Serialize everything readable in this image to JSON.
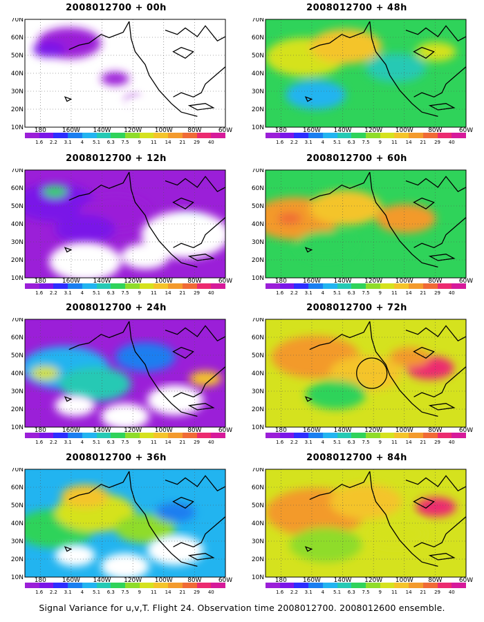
{
  "panels": [
    {
      "title": "2008012700 + 00h",
      "lead_hours": 0
    },
    {
      "title": "2008012700 + 48h",
      "lead_hours": 48
    },
    {
      "title": "2008012700 + 12h",
      "lead_hours": 12
    },
    {
      "title": "2008012700 + 60h",
      "lead_hours": 60
    },
    {
      "title": "2008012700 + 24h",
      "lead_hours": 24
    },
    {
      "title": "2008012700 + 72h",
      "lead_hours": 72
    },
    {
      "title": "2008012700 + 36h",
      "lead_hours": 36
    },
    {
      "title": "2008012700 + 84h",
      "lead_hours": 84
    }
  ],
  "lat_labels": [
    "70N",
    "60N",
    "50N",
    "40N",
    "30N",
    "20N",
    "10N"
  ],
  "lon_labels": [
    "180",
    "160W",
    "140W",
    "120W",
    "100W",
    "80W",
    "60W"
  ],
  "color_scale": {
    "values": [
      "1.6",
      "2.2",
      "3.1",
      "4",
      "5.1",
      "6.3",
      "7.5",
      "9",
      "11",
      "14",
      "21",
      "29",
      "40"
    ],
    "colors": [
      "#9b1fd8",
      "#7a16e8",
      "#2d2dff",
      "#1a7ef0",
      "#22b4f0",
      "#25c9b4",
      "#2fd35a",
      "#8fdc2a",
      "#d5e21e",
      "#f4c42a",
      "#f39a2c",
      "#f06a36",
      "#ec2a6f",
      "#d61a9a"
    ]
  },
  "caption": "Signal Variance for u,v,T. Flight 24. Observation time 2008012700. 2008012600 ensemble."
}
